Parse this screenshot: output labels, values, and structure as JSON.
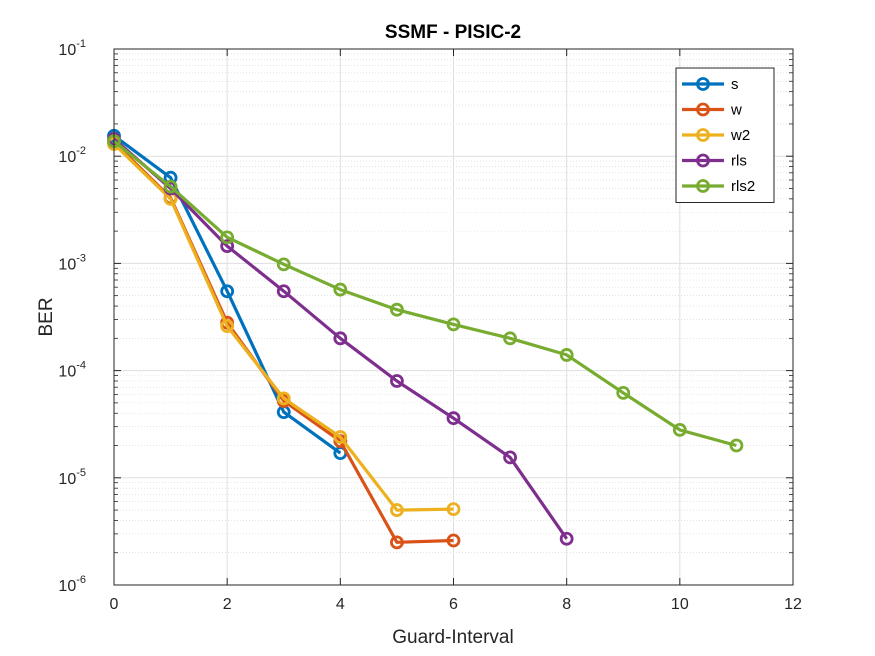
{
  "chart_data": {
    "type": "line",
    "title": "SSMF - PISIC-2",
    "xlabel": "Guard-Interval",
    "ylabel": "BER",
    "xlim": [
      0,
      12
    ],
    "ylim": [
      1e-06,
      0.1
    ],
    "yscale": "log",
    "grid": true,
    "minor_grid": true,
    "legend_position": "top-right",
    "x_ticks": [
      "0",
      "2",
      "4",
      "6",
      "8",
      "10",
      "12"
    ],
    "y_ticks": [
      {
        "base": "10",
        "exp": "-6"
      },
      {
        "base": "10",
        "exp": "-5"
      },
      {
        "base": "10",
        "exp": "-4"
      },
      {
        "base": "10",
        "exp": "-3"
      },
      {
        "base": "10",
        "exp": "-2"
      },
      {
        "base": "10",
        "exp": "-1"
      }
    ],
    "series": [
      {
        "name": "s",
        "color": "#0072BD",
        "x": [
          0,
          1,
          2,
          3,
          4
        ],
        "y": [
          0.0155,
          0.0063,
          0.00055,
          4.1e-05,
          1.7e-05
        ]
      },
      {
        "name": "w",
        "color": "#D95319",
        "x": [
          0,
          1,
          2,
          3,
          4,
          5,
          6
        ],
        "y": [
          0.0135,
          0.0041,
          0.00028,
          5.2e-05,
          2.2e-05,
          2.5e-06,
          2.6e-06
        ]
      },
      {
        "name": "w2",
        "color": "#EDB120",
        "x": [
          0,
          1,
          2,
          3,
          4,
          5,
          6
        ],
        "y": [
          0.013,
          0.004,
          0.00026,
          5.5e-05,
          2.4e-05,
          5e-06,
          5.1e-06
        ]
      },
      {
        "name": "rls",
        "color": "#7E2F8E",
        "x": [
          0,
          1,
          2,
          3,
          4,
          5,
          6,
          7,
          8
        ],
        "y": [
          0.0145,
          0.005,
          0.00145,
          0.00055,
          0.0002,
          8e-05,
          3.6e-05,
          1.55e-05,
          2.7e-06
        ]
      },
      {
        "name": "rls2",
        "color": "#77AC30",
        "x": [
          0,
          1,
          2,
          3,
          4,
          5,
          6,
          7,
          8,
          9,
          10,
          11
        ],
        "y": [
          0.0138,
          0.0052,
          0.00175,
          0.00098,
          0.00057,
          0.00037,
          0.00027,
          0.0002,
          0.00014,
          6.2e-05,
          2.8e-05,
          2e-05
        ]
      }
    ]
  }
}
